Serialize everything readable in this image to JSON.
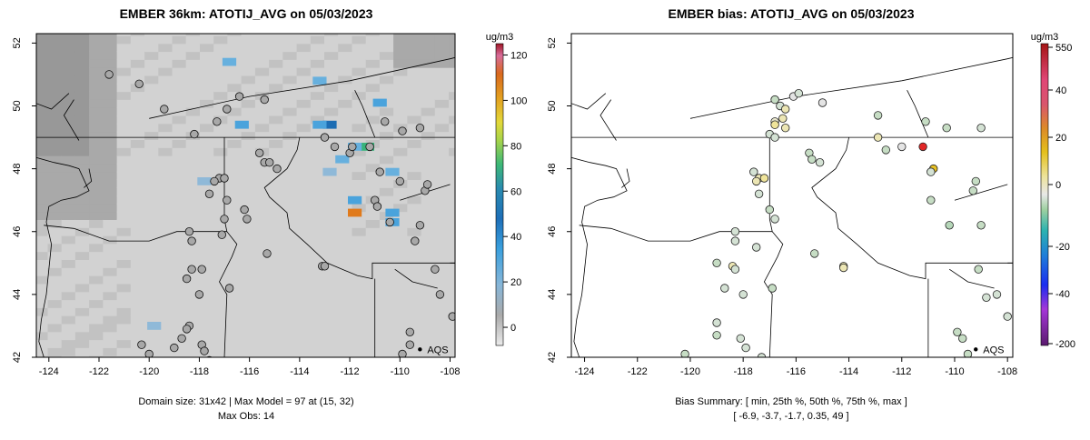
{
  "chart_data": [
    {
      "type": "heatmap",
      "title": "EMBER 36km: ATOTIJ_AVG on 05/03/2023",
      "xlim": [
        -124.5,
        -107.8
      ],
      "ylim": [
        42.0,
        52.3
      ],
      "xticks": [
        -124,
        -122,
        -120,
        -118,
        -116,
        -114,
        -112,
        -110,
        -108
      ],
      "yticks": [
        42,
        44,
        46,
        48,
        50,
        52
      ],
      "colorbar": {
        "label": "ug/m3",
        "ticks": [
          0,
          20,
          40,
          60,
          80,
          100,
          120
        ],
        "range": [
          -8,
          125
        ]
      },
      "footer": [
        "Domain size: 31x42 | Max Model = 97 at (15, 32)",
        "Max Obs: 14"
      ],
      "legend": "AQS",
      "highlight_cells": [
        {
          "lon": -111.8,
          "lat": 46.6,
          "value": 85
        },
        {
          "lon": -111.3,
          "lat": 48.7,
          "value": 55
        },
        {
          "lon": -112.8,
          "lat": 49.4,
          "value": 38
        },
        {
          "lon": -113.2,
          "lat": 49.4,
          "value": 25
        },
        {
          "lon": -111.8,
          "lat": 47.0,
          "value": 24
        },
        {
          "lon": -110.3,
          "lat": 46.3,
          "value": 24
        },
        {
          "lon": -110.3,
          "lat": 46.6,
          "value": 22
        },
        {
          "lon": -111.8,
          "lat": 48.7,
          "value": 20
        },
        {
          "lon": -116.3,
          "lat": 49.4,
          "value": 22
        },
        {
          "lon": -116.8,
          "lat": 51.4,
          "value": 20
        },
        {
          "lon": -110.8,
          "lat": 50.1,
          "value": 22
        },
        {
          "lon": -110.3,
          "lat": 47.9,
          "value": 20
        },
        {
          "lon": -112.3,
          "lat": 48.3,
          "value": 18
        },
        {
          "lon": -112.8,
          "lat": 47.9,
          "value": 16
        },
        {
          "lon": -117.8,
          "lat": 47.6,
          "value": 14
        },
        {
          "lon": -113.2,
          "lat": 50.8,
          "value": 18
        },
        {
          "lon": -119.8,
          "lat": 43.0,
          "value": 14
        }
      ],
      "sites": [
        {
          "lon": -121.6,
          "lat": 51.0
        },
        {
          "lon": -120.4,
          "lat": 50.7
        },
        {
          "lon": -119.4,
          "lat": 49.9
        },
        {
          "lon": -118.2,
          "lat": 49.1
        },
        {
          "lon": -117.3,
          "lat": 49.5
        },
        {
          "lon": -116.9,
          "lat": 49.9
        },
        {
          "lon": -116.4,
          "lat": 50.3
        },
        {
          "lon": -115.4,
          "lat": 50.2
        },
        {
          "lon": -115.6,
          "lat": 48.5
        },
        {
          "lon": -115.4,
          "lat": 48.2
        },
        {
          "lon": -115.2,
          "lat": 48.2
        },
        {
          "lon": -114.9,
          "lat": 48.0
        },
        {
          "lon": -117.2,
          "lat": 47.7
        },
        {
          "lon": -117.0,
          "lat": 47.7
        },
        {
          "lon": -117.4,
          "lat": 47.6
        },
        {
          "lon": -117.6,
          "lat": 47.2
        },
        {
          "lon": -116.9,
          "lat": 47.0
        },
        {
          "lon": -117.0,
          "lat": 46.4
        },
        {
          "lon": -116.2,
          "lat": 46.7
        },
        {
          "lon": -116.1,
          "lat": 46.4
        },
        {
          "lon": -118.4,
          "lat": 46.0
        },
        {
          "lon": -118.3,
          "lat": 45.7
        },
        {
          "lon": -117.1,
          "lat": 45.9
        },
        {
          "lon": -115.3,
          "lat": 45.3
        },
        {
          "lon": -113.1,
          "lat": 44.9
        },
        {
          "lon": -113.0,
          "lat": 44.9
        },
        {
          "lon": -113.0,
          "lat": 49.0
        },
        {
          "lon": -112.6,
          "lat": 48.7
        },
        {
          "lon": -112.0,
          "lat": 48.5
        },
        {
          "lon": -111.9,
          "lat": 48.7
        },
        {
          "lon": -111.2,
          "lat": 48.7
        },
        {
          "lon": -110.6,
          "lat": 49.5
        },
        {
          "lon": -109.9,
          "lat": 49.2
        },
        {
          "lon": -109.2,
          "lat": 49.3
        },
        {
          "lon": -110.8,
          "lat": 47.9
        },
        {
          "lon": -110.0,
          "lat": 47.6
        },
        {
          "lon": -111.0,
          "lat": 47.0
        },
        {
          "lon": -110.9,
          "lat": 46.8
        },
        {
          "lon": -110.4,
          "lat": 46.3
        },
        {
          "lon": -109.0,
          "lat": 47.3
        },
        {
          "lon": -108.9,
          "lat": 47.5
        },
        {
          "lon": -109.2,
          "lat": 46.2
        },
        {
          "lon": -109.4,
          "lat": 45.7
        },
        {
          "lon": -108.6,
          "lat": 44.8
        },
        {
          "lon": -108.4,
          "lat": 44.0
        },
        {
          "lon": -107.9,
          "lat": 43.3
        },
        {
          "lon": -117.9,
          "lat": 44.8
        },
        {
          "lon": -118.0,
          "lat": 44.0
        },
        {
          "lon": -118.3,
          "lat": 44.8
        },
        {
          "lon": -118.5,
          "lat": 44.5
        },
        {
          "lon": -118.4,
          "lat": 43.0
        },
        {
          "lon": -118.5,
          "lat": 42.9
        },
        {
          "lon": -117.9,
          "lat": 42.4
        },
        {
          "lon": -117.8,
          "lat": 42.2
        },
        {
          "lon": -116.8,
          "lat": 44.2
        },
        {
          "lon": -120.0,
          "lat": 42.1
        },
        {
          "lon": -120.3,
          "lat": 42.4
        },
        {
          "lon": -119.0,
          "lat": 42.3
        },
        {
          "lon": -118.7,
          "lat": 42.6
        },
        {
          "lon": -117.6,
          "lat": 41.9
        },
        {
          "lon": -109.6,
          "lat": 42.8
        },
        {
          "lon": -109.6,
          "lat": 42.4
        },
        {
          "lon": -109.9,
          "lat": 42.1
        }
      ],
      "aqs_marker": {
        "lon": -109.2,
        "lat": 42.25
      }
    },
    {
      "type": "scatter",
      "title": "EMBER bias: ATOTIJ_AVG on 05/03/2023",
      "xlim": [
        -124.5,
        -107.8
      ],
      "ylim": [
        42.0,
        52.3
      ],
      "xticks": [
        -124,
        -122,
        -120,
        -118,
        -116,
        -114,
        -112,
        -110,
        -108
      ],
      "yticks": [
        42,
        44,
        46,
        48,
        50,
        52
      ],
      "colorbar": {
        "label": "ug/m3",
        "ticks": [
          550,
          40,
          20,
          0,
          -20,
          -40,
          -200
        ]
      },
      "footer": [
        "Bias Summary: [ min, 25th %, 50th %, 75th %, max ]",
        "[ -6.9,   -3.7,   -1.7,   0.35,   49 ]"
      ],
      "summary": {
        "min": -6.9,
        "p25": -3.7,
        "p50": -1.7,
        "p75": 0.35,
        "max": 49
      },
      "legend": "AQS",
      "points": [
        {
          "lon": -117.0,
          "lat": 49.1,
          "bias": -3
        },
        {
          "lon": -116.6,
          "lat": 50.0,
          "bias": -2
        },
        {
          "lon": -116.1,
          "lat": 50.3,
          "bias": 0
        },
        {
          "lon": -116.8,
          "lat": 49.5,
          "bias": 4
        },
        {
          "lon": -116.8,
          "lat": 49.4,
          "bias": 14
        },
        {
          "lon": -116.8,
          "lat": 49.0,
          "bias": -2
        },
        {
          "lon": -116.4,
          "lat": 49.9,
          "bias": 8
        },
        {
          "lon": -116.5,
          "lat": 49.6,
          "bias": 6
        },
        {
          "lon": -116.4,
          "lat": 49.3,
          "bias": 5
        },
        {
          "lon": -115.0,
          "lat": 50.1,
          "bias": 0
        },
        {
          "lon": -115.9,
          "lat": 50.4,
          "bias": -3
        },
        {
          "lon": -116.8,
          "lat": 50.2,
          "bias": -4
        },
        {
          "lon": -112.9,
          "lat": 49.7,
          "bias": -5
        },
        {
          "lon": -112.9,
          "lat": 49.0,
          "bias": 6
        },
        {
          "lon": -112.6,
          "lat": 48.6,
          "bias": -4
        },
        {
          "lon": -112.0,
          "lat": 48.7,
          "bias": 0
        },
        {
          "lon": -111.2,
          "lat": 48.7,
          "bias": 49
        },
        {
          "lon": -111.1,
          "lat": 49.5,
          "bias": -5
        },
        {
          "lon": -110.3,
          "lat": 49.3,
          "bias": -5
        },
        {
          "lon": -109.0,
          "lat": 49.3,
          "bias": -3
        },
        {
          "lon": -110.8,
          "lat": 48.0,
          "bias": 22
        },
        {
          "lon": -110.9,
          "lat": 47.9,
          "bias": -3
        },
        {
          "lon": -110.9,
          "lat": 47.0,
          "bias": -5
        },
        {
          "lon": -109.2,
          "lat": 47.6,
          "bias": -4
        },
        {
          "lon": -109.3,
          "lat": 47.3,
          "bias": -5
        },
        {
          "lon": -110.2,
          "lat": 46.2,
          "bias": -6
        },
        {
          "lon": -109.0,
          "lat": 46.2,
          "bias": -4
        },
        {
          "lon": -115.5,
          "lat": 48.5,
          "bias": -5
        },
        {
          "lon": -115.4,
          "lat": 48.3,
          "bias": -5
        },
        {
          "lon": -115.1,
          "lat": 48.2,
          "bias": -3
        },
        {
          "lon": -117.6,
          "lat": 47.9,
          "bias": -3
        },
        {
          "lon": -117.4,
          "lat": 47.7,
          "bias": 8
        },
        {
          "lon": -117.2,
          "lat": 47.7,
          "bias": 10
        },
        {
          "lon": -117.5,
          "lat": 47.6,
          "bias": 6
        },
        {
          "lon": -117.4,
          "lat": 47.2,
          "bias": -2
        },
        {
          "lon": -117.0,
          "lat": 46.7,
          "bias": -4
        },
        {
          "lon": -116.8,
          "lat": 46.4,
          "bias": -3
        },
        {
          "lon": -118.3,
          "lat": 46.0,
          "bias": -2
        },
        {
          "lon": -118.3,
          "lat": 45.7,
          "bias": -3
        },
        {
          "lon": -117.5,
          "lat": 45.5,
          "bias": -2
        },
        {
          "lon": -115.3,
          "lat": 45.3,
          "bias": -5
        },
        {
          "lon": -114.2,
          "lat": 44.9,
          "bias": 6
        },
        {
          "lon": -114.2,
          "lat": 44.85,
          "bias": 5
        },
        {
          "lon": -118.4,
          "lat": 44.9,
          "bias": 8
        },
        {
          "lon": -118.3,
          "lat": 44.8,
          "bias": -3
        },
        {
          "lon": -119.0,
          "lat": 45.0,
          "bias": -4
        },
        {
          "lon": -118.7,
          "lat": 44.2,
          "bias": -3
        },
        {
          "lon": -116.9,
          "lat": 44.2,
          "bias": -4
        },
        {
          "lon": -118.0,
          "lat": 44.0,
          "bias": -3
        },
        {
          "lon": -119.0,
          "lat": 43.1,
          "bias": -3
        },
        {
          "lon": -119.0,
          "lat": 42.7,
          "bias": -4
        },
        {
          "lon": -118.1,
          "lat": 42.6,
          "bias": -3
        },
        {
          "lon": -117.9,
          "lat": 42.3,
          "bias": -2
        },
        {
          "lon": -120.2,
          "lat": 42.1,
          "bias": -5
        },
        {
          "lon": -117.3,
          "lat": 42.0,
          "bias": -3
        },
        {
          "lon": -108.8,
          "lat": 43.9,
          "bias": -3
        },
        {
          "lon": -108.4,
          "lat": 44.0,
          "bias": -3
        },
        {
          "lon": -108.0,
          "lat": 43.3,
          "bias": -3
        },
        {
          "lon": -109.1,
          "lat": 44.8,
          "bias": -4
        },
        {
          "lon": -109.7,
          "lat": 42.6,
          "bias": -5
        },
        {
          "lon": -109.9,
          "lat": 42.8,
          "bias": -4
        },
        {
          "lon": -109.5,
          "lat": 42.1,
          "bias": -5
        }
      ],
      "aqs_marker": {
        "lon": -109.2,
        "lat": 42.25
      }
    }
  ]
}
